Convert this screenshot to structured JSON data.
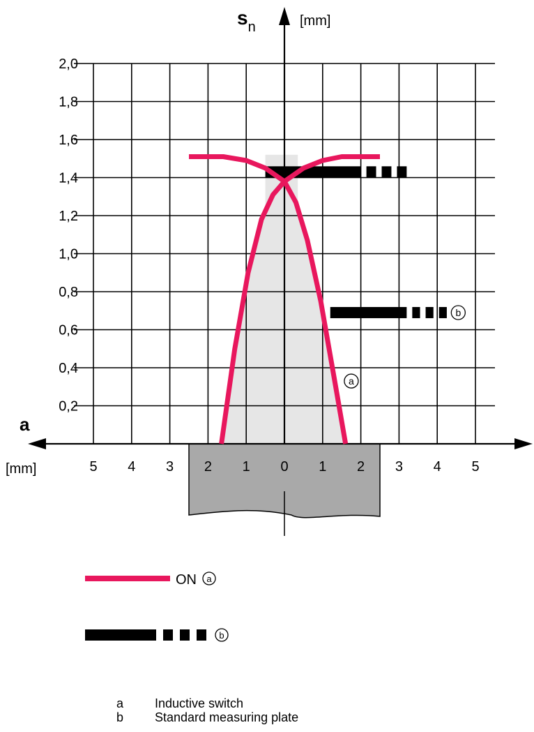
{
  "chart_data": {
    "type": "line",
    "x_label": "a",
    "x_unit": "[mm]",
    "y_label_main": "s",
    "y_label_sub": "n",
    "y_unit": "[mm]",
    "x_ticks": [
      {
        "v": -5,
        "t": "5"
      },
      {
        "v": -4,
        "t": "4"
      },
      {
        "v": -3,
        "t": "3"
      },
      {
        "v": -2,
        "t": "2"
      },
      {
        "v": -1,
        "t": "1"
      },
      {
        "v": 0,
        "t": "0"
      },
      {
        "v": 1,
        "t": "1"
      },
      {
        "v": 2,
        "t": "2"
      },
      {
        "v": 3,
        "t": "3"
      },
      {
        "v": 4,
        "t": "4"
      },
      {
        "v": 5,
        "t": "5"
      }
    ],
    "y_ticks": [
      {
        "v": 0.2,
        "t": "0,2"
      },
      {
        "v": 0.4,
        "t": "0,4"
      },
      {
        "v": 0.6,
        "t": "0,6"
      },
      {
        "v": 0.8,
        "t": "0,8"
      },
      {
        "v": 1.0,
        "t": "1,0"
      },
      {
        "v": 1.2,
        "t": "1,2"
      },
      {
        "v": 1.4,
        "t": "1,4"
      },
      {
        "v": 1.6,
        "t": "1,6"
      },
      {
        "v": 1.8,
        "t": "1,8"
      },
      {
        "v": 2.0,
        "t": "2,0"
      }
    ],
    "xlim": [
      -5.5,
      5.5
    ],
    "ylim": [
      0,
      2.0
    ],
    "grid": true,
    "series": [
      {
        "name": "ON",
        "marker": "a",
        "color": "#e8175d",
        "style": "solid",
        "curves": [
          [
            [
              -1.65,
              0
            ],
            [
              -1.3,
              0.5
            ],
            [
              -0.95,
              0.9
            ],
            [
              -0.6,
              1.18
            ],
            [
              -0.3,
              1.31
            ],
            [
              0,
              1.38
            ],
            [
              0.5,
              1.45
            ],
            [
              1.0,
              1.49
            ],
            [
              1.5,
              1.51
            ],
            [
              2.5,
              1.51
            ]
          ],
          [
            [
              1.6,
              0
            ],
            [
              1.3,
              0.35
            ],
            [
              0.95,
              0.75
            ],
            [
              0.6,
              1.07
            ],
            [
              0.3,
              1.27
            ],
            [
              0,
              1.38
            ],
            [
              -0.5,
              1.45
            ],
            [
              -1.0,
              1.49
            ],
            [
              -1.6,
              1.51
            ],
            [
              -2.5,
              1.51
            ]
          ]
        ]
      },
      {
        "name": "",
        "marker": "b",
        "color": "#000000",
        "style": "dashed",
        "segments": [
          {
            "y": 1.43,
            "x_solid": [
              -0.5,
              2.0
            ],
            "x_dash_end": 3.2
          },
          {
            "y": 0.69,
            "x_solid": [
              1.2,
              3.2
            ],
            "x_dash_end": 4.25
          }
        ]
      }
    ],
    "sensing_zone_fill": "#e6e6e6",
    "target_fill": "#a9a9a9",
    "target_x_range": [
      -2.5,
      2.5
    ],
    "annotation_a": {
      "x": 1.75,
      "y": 0.33,
      "text": "a"
    },
    "annotation_b": {
      "x": 4.55,
      "y": 0.69,
      "text": "b"
    }
  },
  "legend": {
    "on_label": "ON",
    "on_marker": "a",
    "dash_marker": "b"
  },
  "footnotes": [
    {
      "key": "a",
      "text": "Inductive switch"
    },
    {
      "key": "b",
      "text": "Standard measuring plate"
    }
  ]
}
